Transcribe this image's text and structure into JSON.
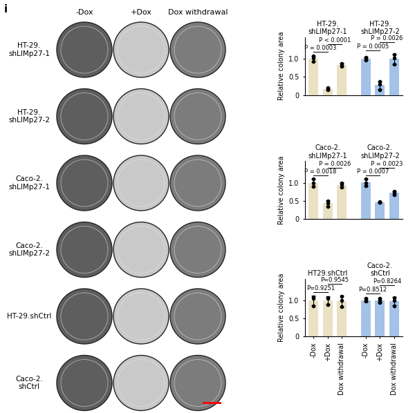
{
  "panel_label": "i",
  "plates": {
    "columns": [
      "-Dox",
      "+Dox",
      "Dox withdrawal"
    ],
    "rows": [
      "HT-29.shLIMp27-1",
      "HT-29.shLIMp27-2",
      "Caco-2.shLIMp27-1",
      "Caco-2.shLIMp27-2",
      "HT-29.shCtrl",
      "Caco-2.shCtrl"
    ]
  },
  "chart_data": [
    {
      "type": "bar",
      "y_label": "Relative colony area",
      "tick_labels": "y",
      "categories": [
        "-Dox",
        "+Dox",
        "Dox withdrawal"
      ],
      "ylim": [
        0,
        1.6
      ],
      "yticks": [
        0,
        0.5,
        {
          "value": 1.0,
          "label": "1.0"
        }
      ],
      "series": [
        {
          "name": "HT-29.shLIMp27-1",
          "color": "#e9e1c2",
          "values": [
            1.01,
            0.17,
            0.84
          ],
          "errors": [
            0.08,
            0.03,
            0.04
          ],
          "points": [
            [
              0.93,
              1.08,
              1.03
            ],
            [
              0.14,
              0.2,
              0.17
            ],
            [
              0.8,
              0.86,
              0.87
            ]
          ],
          "comparisons": [
            {
              "pair": [
                0,
                1
              ],
              "label": "P = 0.0003"
            },
            {
              "pair": [
                1,
                2
              ],
              "label": "P < 0.0001"
            }
          ]
        },
        {
          "name": "HT-29.shLIMp27-2",
          "color": "#a4c2e8",
          "values": [
            1.01,
            0.27,
            1.0
          ],
          "errors": [
            0.04,
            0.11,
            0.14
          ],
          "points": [
            [
              0.97,
              1.02,
              1.05
            ],
            [
              0.15,
              0.29,
              0.37
            ],
            [
              0.85,
              1.03,
              1.12
            ]
          ],
          "comparisons": [
            {
              "pair": [
                0,
                1
              ],
              "label": "P = 0.0005"
            },
            {
              "pair": [
                1,
                2
              ],
              "label": "P = 0.0026"
            }
          ]
        }
      ]
    },
    {
      "type": "bar",
      "y_label": "Relative colony area",
      "tick_labels": "y",
      "categories": [
        "-Dox",
        "+Dox",
        "Dox withdrawal"
      ],
      "ylim": [
        0,
        1.6
      ],
      "yticks": [
        0,
        0.5,
        {
          "value": 1.0,
          "label": "1.0"
        }
      ],
      "series": [
        {
          "name": "Caco-2.shLIMp27-1",
          "color": "#e9e1c2",
          "values": [
            1.0,
            0.43,
            0.94
          ],
          "errors": [
            0.1,
            0.08,
            0.07
          ],
          "points": [
            [
              0.9,
              1.0,
              1.1
            ],
            [
              0.35,
              0.44,
              0.5
            ],
            [
              0.87,
              0.95,
              1.0
            ]
          ],
          "comparisons": [
            {
              "pair": [
                0,
                1
              ],
              "label": "P = 0.0018"
            },
            {
              "pair": [
                1,
                2
              ],
              "label": "P = 0.0026"
            }
          ]
        },
        {
          "name": "Caco-2.shLIMp27-2",
          "color": "#a4c2e8",
          "values": [
            1.01,
            0.46,
            0.72
          ],
          "errors": [
            0.09,
            0.01,
            0.05
          ],
          "points": [
            [
              0.92,
              1.0,
              1.1
            ],
            [
              0.45,
              0.46,
              0.47
            ],
            [
              0.67,
              0.72,
              0.76
            ]
          ],
          "comparisons": [
            {
              "pair": [
                0,
                1
              ],
              "label": "P = 0.0007"
            },
            {
              "pair": [
                1,
                2
              ],
              "label": "P = 0.0023"
            }
          ]
        }
      ]
    },
    {
      "type": "bar",
      "y_label": "Relative colony area",
      "categories": [
        "-Dox",
        "+Dox",
        "Dox withdrawal"
      ],
      "ylim": [
        0,
        1.6
      ],
      "yticks": [
        0,
        0.5,
        {
          "value": 1.0,
          "label": "1.0"
        }
      ],
      "series": [
        {
          "name": "HT29.shCtrl",
          "color": "#e9e1c2",
          "values": [
            1.0,
            1.0,
            0.98
          ],
          "errors": [
            0.13,
            0.11,
            0.15
          ],
          "points": [
            [
              0.85,
              1.05,
              1.1
            ],
            [
              0.88,
              1.05,
              1.08
            ],
            [
              0.83,
              1.0,
              1.12
            ]
          ],
          "comparisons": [
            {
              "pair": [
                0,
                1
              ],
              "label": "P=0.9251"
            },
            {
              "pair": [
                1,
                2
              ],
              "label": "P=0.9545"
            }
          ]
        },
        {
          "name": "Caco-2.shCtrl",
          "color": "#a4c2e8",
          "values": [
            1.01,
            1.0,
            0.98
          ],
          "errors": [
            0.04,
            0.05,
            0.12
          ],
          "points": [
            [
              0.98,
              1.0,
              1.05
            ],
            [
              0.95,
              1.0,
              1.05
            ],
            [
              0.85,
              1.0,
              1.08
            ]
          ],
          "comparisons": [
            {
              "pair": [
                0,
                1
              ],
              "label": "P=0.8512"
            },
            {
              "pair": [
                1,
                2
              ],
              "label": "P=0.8264"
            }
          ]
        }
      ]
    }
  ]
}
